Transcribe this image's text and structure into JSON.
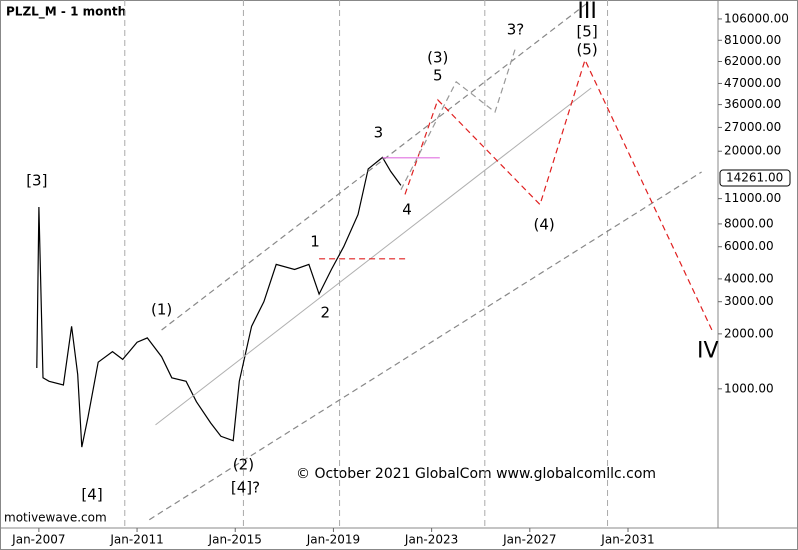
{
  "chart_data": {
    "type": "line",
    "title": "PLZL_M - 1 month",
    "copyright": "© October 2021 GlobalCom www.globalcomllc.com",
    "source": "motivewave.com",
    "log_scale": true,
    "xlim": [
      "2005-06",
      "2034-09"
    ],
    "ylim": [
      173,
      134600
    ],
    "xticks": [
      {
        "value": "2007-01",
        "label": "Jan-2007"
      },
      {
        "value": "2011-01",
        "label": "Jan-2011"
      },
      {
        "value": "2015-01",
        "label": "Jan-2015"
      },
      {
        "value": "2019-01",
        "label": "Jan-2019"
      },
      {
        "value": "2023-01",
        "label": "Jan-2023"
      },
      {
        "value": "2027-01",
        "label": "Jan-2027"
      },
      {
        "value": "2031-01",
        "label": "Jan-2031"
      }
    ],
    "yticks": [
      {
        "value": 1000,
        "label": "1000.00"
      },
      {
        "value": 2000,
        "label": "2000.00"
      },
      {
        "value": 3000,
        "label": "3000.00"
      },
      {
        "value": 4000,
        "label": "4000.00"
      },
      {
        "value": 6000,
        "label": "6000.00"
      },
      {
        "value": 8000,
        "label": "8000.00"
      },
      {
        "value": 11000,
        "label": "11000.00"
      },
      {
        "value": 20000,
        "label": "20000.00"
      },
      {
        "value": 27000,
        "label": "27000.00"
      },
      {
        "value": 36000,
        "label": "36000.00"
      },
      {
        "value": 47000,
        "label": "47000.00"
      },
      {
        "value": 62000,
        "label": "62000.00"
      },
      {
        "value": 81000,
        "label": "81000.00"
      },
      {
        "value": 106000,
        "label": "106000.00"
      }
    ],
    "last_price": {
      "value": 14261,
      "label": "14261.00"
    },
    "vlines": [
      "2010-07",
      "2015-05",
      "2019-04",
      "2025-03",
      "2030-03"
    ],
    "series": [
      {
        "color": "#000000",
        "style": "solid",
        "width": 1.2,
        "x": [
          "2006-12",
          "2007-01",
          "2007-03",
          "2007-06",
          "2008-01",
          "2008-05",
          "2008-08",
          "2008-10",
          "2009-01",
          "2009-06",
          "2010-01",
          "2010-06",
          "2011-01",
          "2011-06",
          "2012-01",
          "2012-06",
          "2013-01",
          "2013-06",
          "2014-01",
          "2014-06",
          "2014-12",
          "2015-03",
          "2015-09",
          "2016-03",
          "2016-09",
          "2017-06",
          "2018-01",
          "2018-06",
          "2018-12",
          "2019-06",
          "2020-01",
          "2020-06",
          "2021-01",
          "2021-05",
          "2021-10"
        ],
        "values": [
          1300,
          9900,
          1150,
          1100,
          1050,
          2200,
          1200,
          480,
          700,
          1400,
          1600,
          1450,
          1800,
          1900,
          1500,
          1150,
          1100,
          850,
          650,
          550,
          520,
          1100,
          2200,
          3000,
          4800,
          4500,
          4800,
          3300,
          4500,
          6000,
          9000,
          16000,
          18500,
          15500,
          13000
        ]
      },
      {
        "color": "#888888",
        "style": "dashed",
        "width": 1.2,
        "x": [
          "2012-01",
          "2029-07"
        ],
        "values": [
          2100,
          134500
        ]
      },
      {
        "color": "#888888",
        "style": "dashed",
        "width": 1.2,
        "x": [
          "2011-07",
          "2034-01"
        ],
        "values": [
          192,
          15400
        ]
      },
      {
        "color": "#b0b0b0",
        "style": "solid",
        "width": 1,
        "x": [
          "2011-10",
          "2029-07"
        ],
        "values": [
          635,
          44400
        ]
      },
      {
        "color": "#e02020",
        "style": "dashed",
        "width": 1.2,
        "x": [
          "2021-12",
          "2023-04",
          "2027-06",
          "2029-04",
          "2034-06"
        ],
        "values": [
          11600,
          38200,
          10200,
          63200,
          2100
        ]
      },
      {
        "color": "#999999",
        "style": "dashed",
        "width": 1.2,
        "x": [
          "2021-10",
          "2024-01",
          "2025-08",
          "2026-06"
        ],
        "values": [
          12300,
          48000,
          32800,
          73500
        ]
      },
      {
        "color": "#e02020",
        "style": "dashed",
        "width": 1.2,
        "x": [
          "2018-06",
          "2022-01"
        ],
        "values": [
          5150,
          5150
        ]
      },
      {
        "color": "#e070e0",
        "style": "solid",
        "width": 1.2,
        "x": [
          "2021-01",
          "2023-05"
        ],
        "values": [
          18400,
          18400
        ]
      }
    ],
    "annotations": [
      {
        "text": "[3]",
        "x": "2006-12",
        "y": 13750,
        "color": "#2e7d32"
      },
      {
        "text": "[4]",
        "x": "2009-03",
        "y": 263,
        "color": "#2e7d32"
      },
      {
        "text": "(1)",
        "x": "2012-01",
        "y": 2700,
        "color": "#1a237e"
      },
      {
        "text": "(2)",
        "x": "2015-05",
        "y": 384,
        "color": "#1a237e"
      },
      {
        "text": "[4]?",
        "x": "2015-06",
        "y": 287,
        "color": "#999999"
      },
      {
        "text": "1",
        "x": "2018-04",
        "y": 6370,
        "color": "#b03030"
      },
      {
        "text": "2",
        "x": "2018-09",
        "y": 2600,
        "color": "#b03030"
      },
      {
        "text": "3",
        "x": "2020-11",
        "y": 25200,
        "color": "#b03030"
      },
      {
        "text": "4",
        "x": "2022-01",
        "y": 9530,
        "color": "#b03030"
      },
      {
        "text": "(3)",
        "x": "2023-04",
        "y": 64800,
        "color": "#1a237e"
      },
      {
        "text": "5",
        "x": "2023-04",
        "y": 51700,
        "color": "#d04040"
      },
      {
        "text": "3?",
        "x": "2026-06",
        "y": 92300,
        "color": "#999999"
      },
      {
        "text": "(4)",
        "x": "2027-08",
        "y": 7900,
        "color": "#1a237e"
      },
      {
        "text": "(5)",
        "x": "2029-05",
        "y": 71600,
        "color": "#1a237e"
      },
      {
        "text": "[5]",
        "x": "2029-05",
        "y": 90000,
        "color": "#2e7d32"
      },
      {
        "text": "III",
        "x": "2029-05",
        "y": 115500,
        "color": "#8b1a1a"
      },
      {
        "text": "IV",
        "x": "2034-04",
        "y": 1600,
        "color": "#8b1a1a"
      }
    ]
  }
}
